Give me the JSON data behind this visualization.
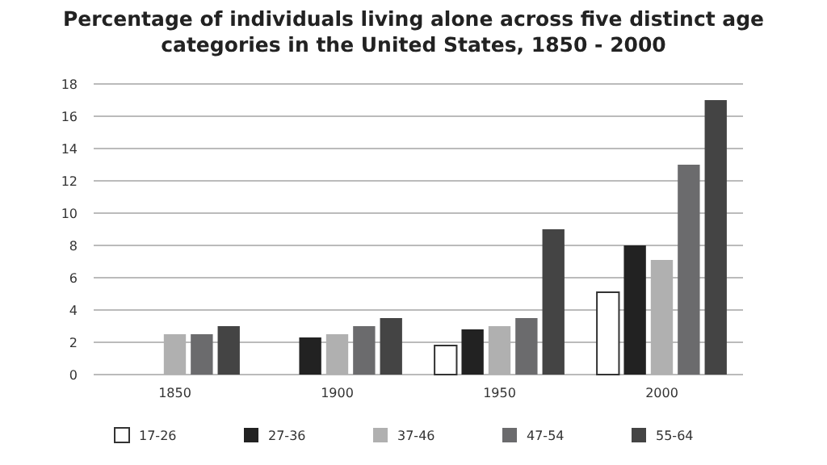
{
  "chart_data": {
    "type": "bar",
    "title": "Percentage of individuals living alone across five distinct age categories in the United States, 1850 - 2000",
    "categories": [
      "1850",
      "1900",
      "1950",
      "2000"
    ],
    "series": [
      {
        "name": "17-26",
        "color": "#ffffff",
        "values": [
          null,
          null,
          1.8,
          5.1
        ]
      },
      {
        "name": "27-36",
        "color": "#222222",
        "values": [
          null,
          2.3,
          2.8,
          8.0
        ]
      },
      {
        "name": "37-46",
        "color": "#b0b0b0",
        "values": [
          2.5,
          2.5,
          3.0,
          7.1
        ]
      },
      {
        "name": "47-54",
        "color": "#6b6b6d",
        "values": [
          2.5,
          3.0,
          3.5,
          13.0
        ]
      },
      {
        "name": "55-64",
        "color": "#444444",
        "values": [
          3.0,
          3.5,
          9.0,
          17.0
        ]
      }
    ],
    "ylim": [
      0,
      18
    ],
    "yticks": [
      0,
      2,
      4,
      6,
      8,
      10,
      12,
      14,
      16,
      18
    ],
    "grid": "y",
    "legend": "bottom"
  }
}
